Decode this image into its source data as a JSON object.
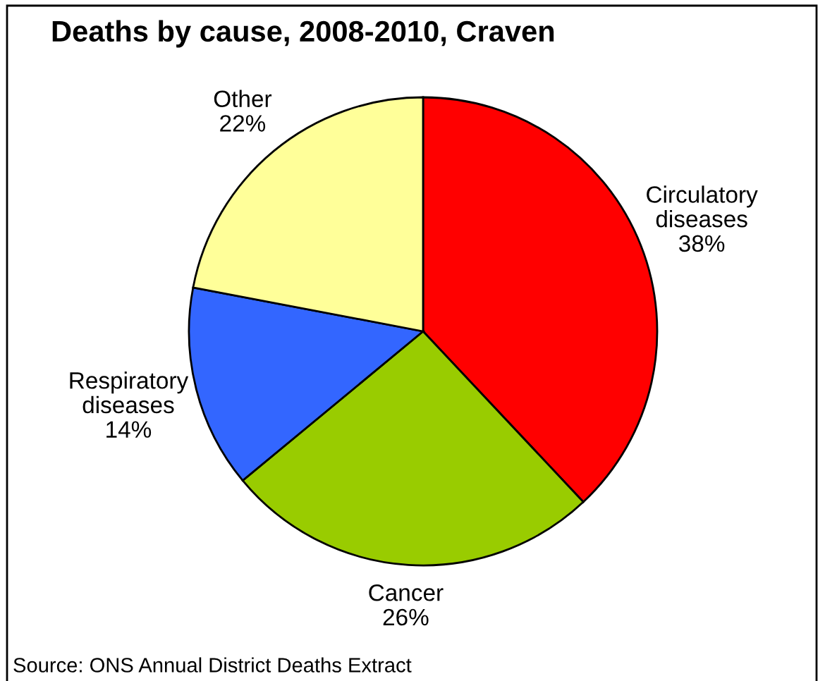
{
  "chart_data": {
    "type": "pie",
    "title": "Deaths by cause, 2008-2010, Craven",
    "categories": [
      "Circulatory diseases",
      "Cancer",
      "Respiratory diseases",
      "Other"
    ],
    "values": [
      38,
      26,
      14,
      22
    ],
    "colors": [
      "#ff0000",
      "#99cc00",
      "#3366ff",
      "#ffff99"
    ],
    "value_labels": [
      "38%",
      "26%",
      "14%",
      "22%"
    ],
    "annotations": [
      "Source: ONS Annual District Deaths Extract"
    ]
  }
}
